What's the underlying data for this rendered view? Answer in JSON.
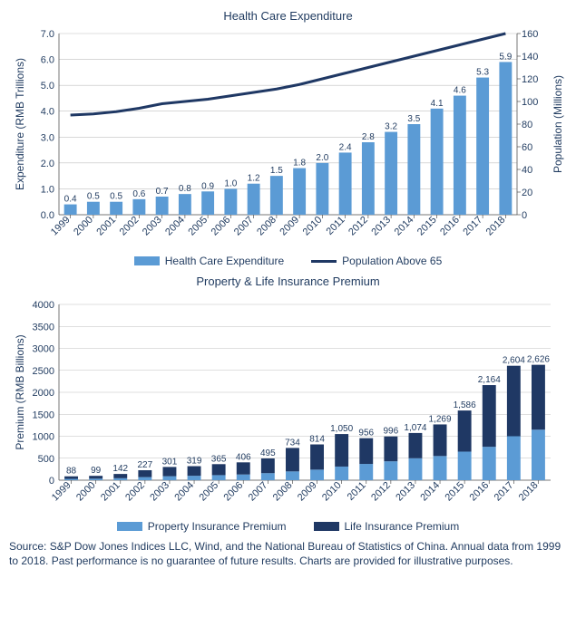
{
  "chart1": {
    "title": "Health Care Expenditure",
    "type": "bar+line",
    "years": [
      "1999",
      "2000",
      "2001",
      "2002",
      "2003",
      "2004",
      "2005",
      "2006",
      "2007",
      "2008",
      "2009",
      "2010",
      "2011",
      "2012",
      "2013",
      "2014",
      "2015",
      "2016",
      "2017",
      "2018"
    ],
    "bar_values": [
      0.4,
      0.5,
      0.5,
      0.6,
      0.7,
      0.8,
      0.9,
      1.0,
      1.2,
      1.5,
      1.8,
      2.0,
      2.4,
      2.8,
      3.2,
      3.5,
      4.1,
      4.6,
      5.3,
      5.9
    ],
    "line_values": [
      88,
      89,
      91,
      94,
      98,
      100,
      102,
      105,
      108,
      111,
      115,
      120,
      125,
      130,
      135,
      140,
      145,
      150,
      155,
      160
    ],
    "bar_color": "#5b9bd5",
    "line_color": "#1f3864",
    "y1_label": "Expenditure (RMB Trillions)",
    "y2_label": "Population (Millions)",
    "y1_lim": [
      0,
      7.0
    ],
    "y1_ticks": [
      0.0,
      1.0,
      2.0,
      3.0,
      4.0,
      5.0,
      6.0,
      7.0
    ],
    "y2_lim": [
      0,
      160
    ],
    "y2_ticks": [
      0,
      20,
      40,
      60,
      80,
      100,
      120,
      140,
      160
    ],
    "grid_color": "#bfbfbf",
    "background_color": "#ffffff",
    "legend": {
      "bar_label": "Health Care Expenditure",
      "line_label": "Population Above 65"
    }
  },
  "chart2": {
    "title": "Property & Life Insurance Premium",
    "type": "stacked-bar",
    "years": [
      "1999",
      "2000",
      "2001",
      "2002",
      "2003",
      "2004",
      "2005",
      "2006",
      "2007",
      "2008",
      "2009",
      "2010",
      "2011",
      "2012",
      "2013",
      "2014",
      "2015",
      "2016",
      "2017",
      "2018"
    ],
    "total_values": [
      88,
      99,
      142,
      227,
      301,
      319,
      365,
      406,
      495,
      734,
      814,
      1050,
      956,
      996,
      1074,
      1269,
      1586,
      2164,
      2604,
      2626
    ],
    "property_values": [
      30,
      35,
      45,
      70,
      90,
      100,
      115,
      130,
      160,
      200,
      240,
      310,
      370,
      430,
      500,
      550,
      650,
      760,
      1000,
      1150
    ],
    "life_values": [
      58,
      64,
      97,
      157,
      211,
      219,
      250,
      276,
      335,
      534,
      574,
      740,
      586,
      566,
      574,
      719,
      936,
      1404,
      1604,
      1476
    ],
    "property_color": "#5b9bd5",
    "life_color": "#1f3864",
    "y_label": "Premium (RMB Billions)",
    "y_lim": [
      0,
      4000
    ],
    "y_ticks": [
      0,
      500,
      1000,
      1500,
      2000,
      2500,
      3000,
      3500,
      4000
    ],
    "grid_color": "#bfbfbf",
    "background_color": "#ffffff",
    "legend": {
      "property_label": "Property Insurance Premium",
      "life_label": "Life Insurance Premium"
    }
  },
  "source_text": "Source: S&P Dow Jones Indices LLC, Wind, and the National Bureau of Statistics of China.  Annual data from 1999 to 2018.  Past performance is no guarantee of future results.  Charts are provided for illustrative purposes."
}
